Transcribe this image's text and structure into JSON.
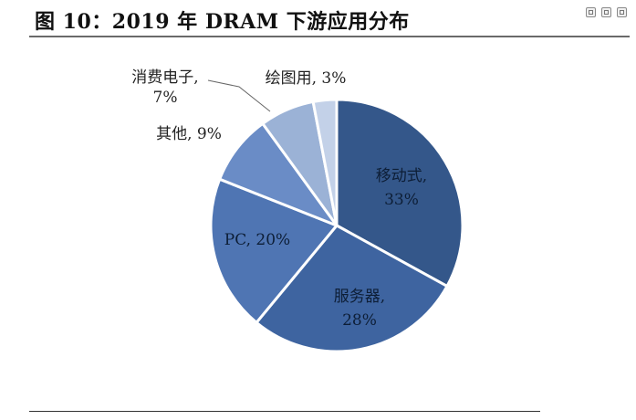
{
  "title": "图 10：2019 年 DRAM 下游应用分布",
  "window_controls": [
    "minimize-icon",
    "restore-icon",
    "close-icon"
  ],
  "chart_data": {
    "type": "pie",
    "title": "图 10：2019 年 DRAM 下游应用分布",
    "slices": [
      {
        "label": "移动式",
        "value": 33,
        "display": "33%",
        "color": "#34578a",
        "label_color": "#0d1e36"
      },
      {
        "label": "服务器",
        "value": 28,
        "display": "28%",
        "color": "#3e64a0",
        "label_color": "#0d1e36"
      },
      {
        "label": "PC",
        "value": 20,
        "display": "20%",
        "color": "#4f75b3",
        "label_color": "#0d1e36"
      },
      {
        "label": "其他",
        "value": 9,
        "display": "9%",
        "color": "#6a8cc6",
        "label_color": "#222222"
      },
      {
        "label": "消费电子",
        "value": 7,
        "display": "7%",
        "color": "#9bb2d6",
        "label_color": "#222222"
      },
      {
        "label": "绘图用",
        "value": 3,
        "display": "3%",
        "color": "#c3d1e8",
        "label_color": "#222222"
      }
    ]
  }
}
